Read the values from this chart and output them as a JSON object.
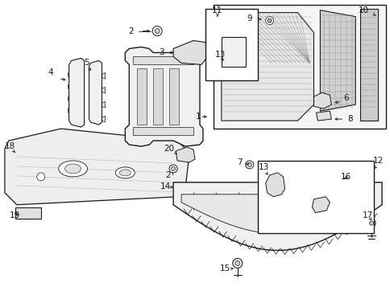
{
  "bg_color": "#ffffff",
  "line_color": "#1a1a1a",
  "figsize": [
    4.85,
    3.57
  ],
  "dpi": 100,
  "label_fontsize": 7.5,
  "small_fontsize": 6.5
}
